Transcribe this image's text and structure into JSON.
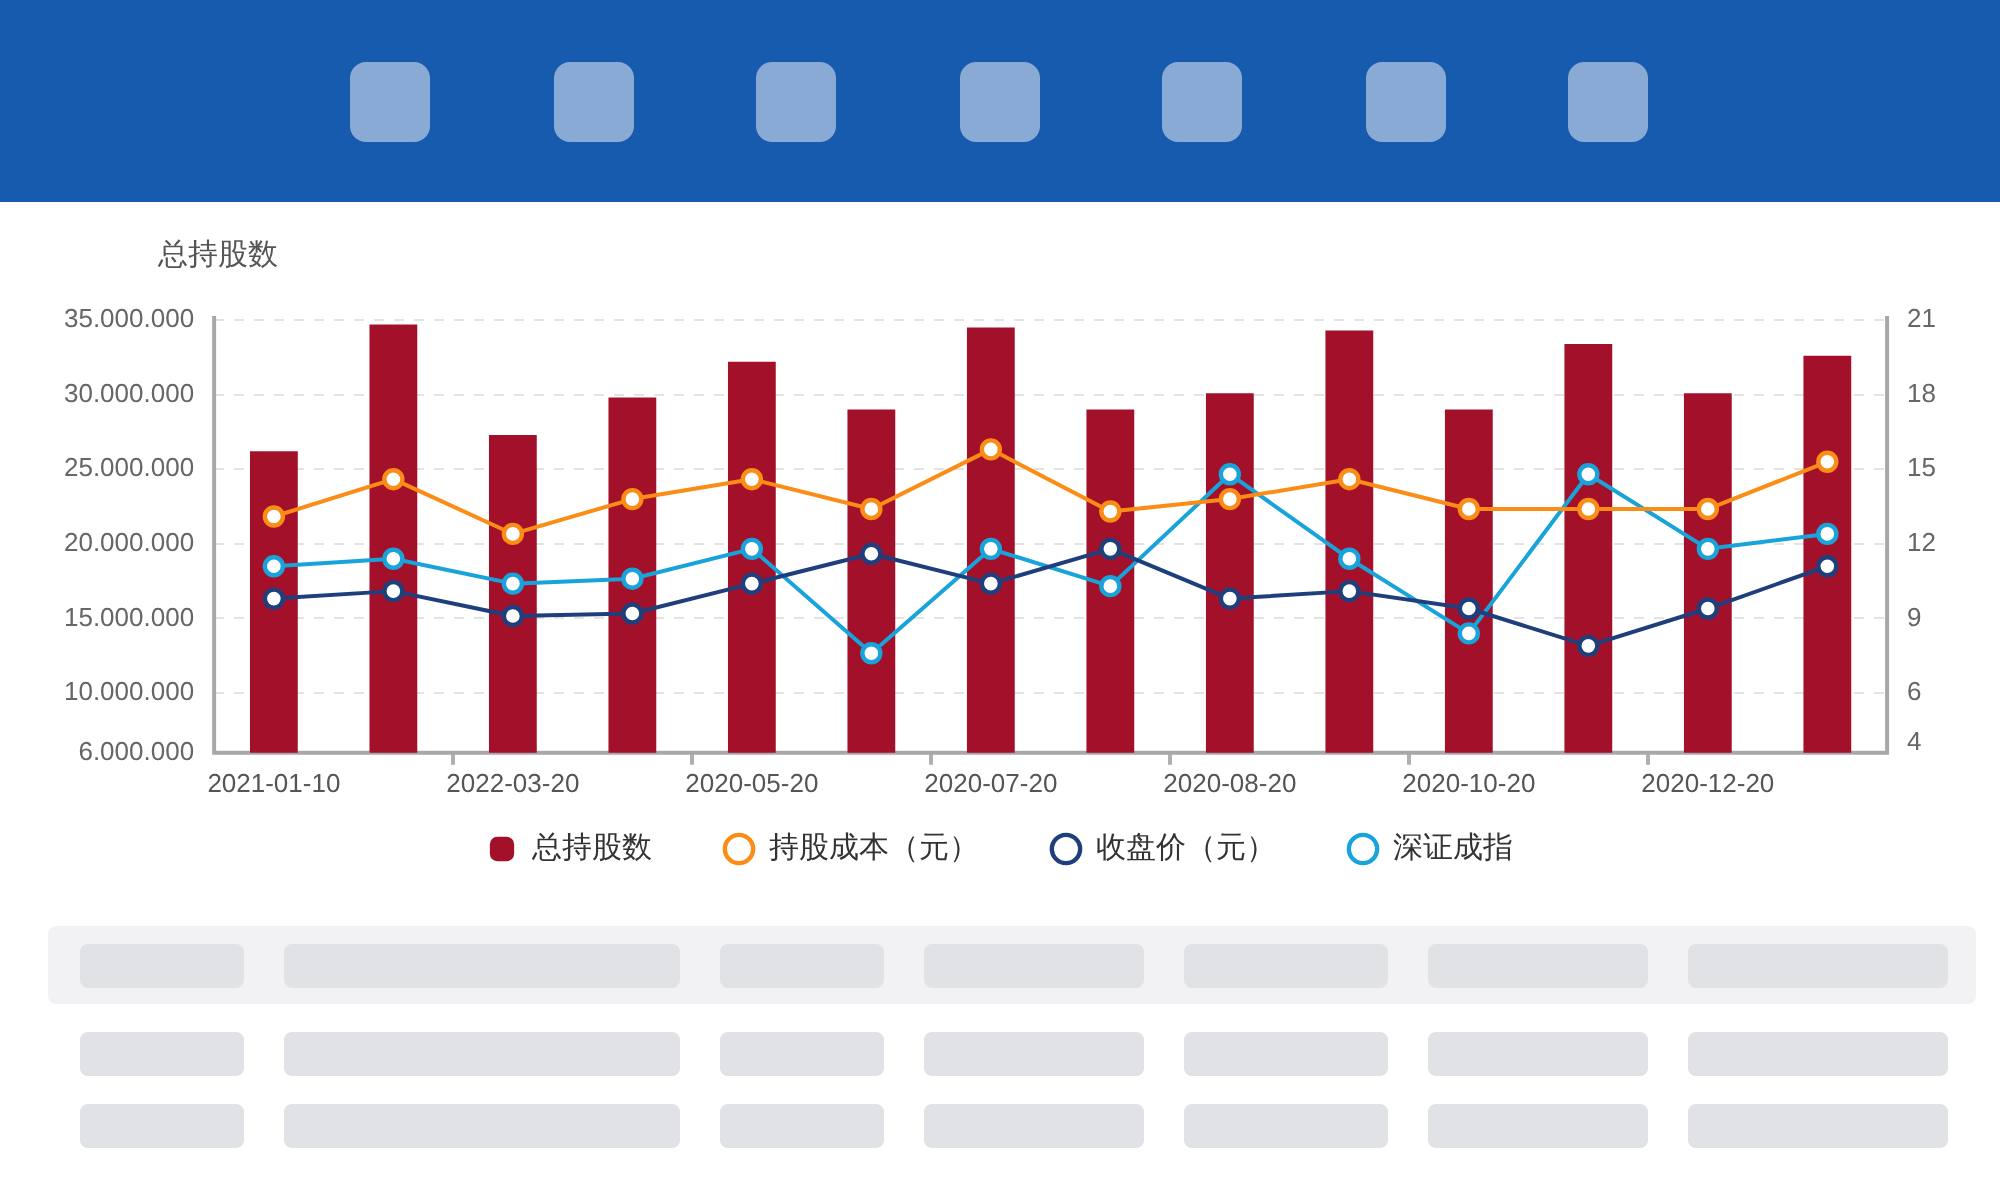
{
  "chart_data": {
    "type": "bar",
    "ylabel": "总持股数",
    "categories": [
      "2021-01-10",
      null,
      "2022-03-20",
      null,
      "2020-05-20",
      null,
      "2020-07-20",
      null,
      "2020-08-20",
      null,
      "2020-10-20",
      null,
      "2020-12-20",
      null
    ],
    "series": [
      {
        "name": "总持股数",
        "color": "#a3102a",
        "values": [
          26200000,
          34700000,
          27300000,
          29800000,
          32200000,
          29000000,
          34500000,
          29000000,
          30100000,
          34300000,
          29000000,
          33400000,
          30100000,
          32600000
        ]
      },
      {
        "name": "持股成本（元）",
        "type": "line",
        "axis": "y2",
        "color": "#fb8c16",
        "values": [
          13.1,
          14.6,
          12.4,
          13.8,
          14.6,
          13.4,
          15.8,
          13.3,
          13.8,
          14.6,
          13.4,
          13.4,
          13.4,
          15.3
        ]
      },
      {
        "name": "收盘价（元）",
        "type": "line",
        "axis": "y2",
        "color": "#1f3f7c",
        "values": [
          9.8,
          10.1,
          9.1,
          9.2,
          10.4,
          11.6,
          10.4,
          11.8,
          9.8,
          10.1,
          9.4,
          7.9,
          9.4,
          11.1
        ]
      },
      {
        "name": "深证成指",
        "type": "line",
        "axis": "y2",
        "color": "#18a4da",
        "values": [
          11.1,
          11.4,
          10.4,
          10.6,
          11.8,
          7.6,
          11.8,
          10.3,
          14.8,
          11.4,
          8.4,
          14.8,
          11.8,
          12.4
        ]
      }
    ],
    "ylim": [
      6000000,
      35000000
    ],
    "yticks": [
      {
        "value": 6000000,
        "label": "6.000.000"
      },
      {
        "value": 10000000,
        "label": "10.000.000"
      },
      {
        "value": 15000000,
        "label": "15.000.000"
      },
      {
        "value": 20000000,
        "label": "20.000.000"
      },
      {
        "value": 25000000,
        "label": "25.000.000"
      },
      {
        "value": 30000000,
        "label": "30.000.000"
      },
      {
        "value": 35000000,
        "label": "35.000.000"
      }
    ],
    "y2lim": [
      3.6,
      21
    ],
    "y2ticks": [
      4,
      6,
      9,
      12,
      15,
      18,
      21
    ],
    "grid": "y",
    "legend": "bottom",
    "marker": "circle"
  }
}
